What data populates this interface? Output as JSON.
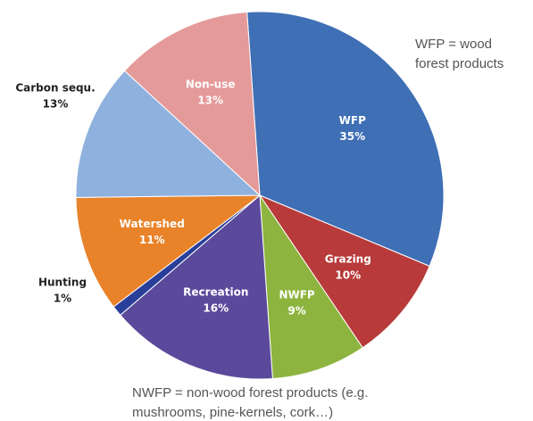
{
  "chart_data": {
    "type": "pie",
    "categories": [
      "WFP",
      "Grazing",
      "NWFP",
      "Recreation",
      "Hunting",
      "Watershed",
      "Carbon sequ.",
      "Non-use"
    ],
    "values": [
      35,
      10,
      9,
      16,
      1,
      11,
      13,
      13
    ],
    "value_labels": [
      "35%",
      "10%",
      "9%",
      "16%",
      "1%",
      "11%",
      "13%",
      "13%"
    ],
    "colors": [
      "#3f6fb5",
      "#b83a3a",
      "#8db43e",
      "#5b4a9b",
      "#2a3f9a",
      "#e8832a",
      "#8fb1de",
      "#e59a9a"
    ],
    "annotations": [
      [
        "WFP = wood",
        "forest products"
      ],
      [
        "NWFP = non-wood forest products (e.g.",
        "mushrooms, pine-kernels, cork…)"
      ]
    ]
  }
}
